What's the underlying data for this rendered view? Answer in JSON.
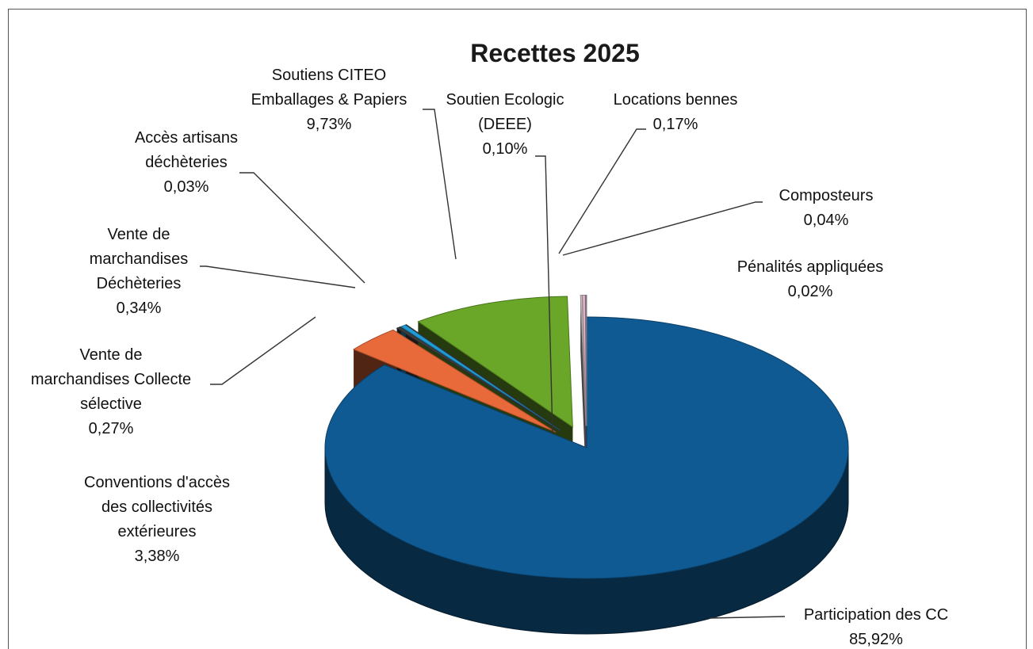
{
  "chart_data": {
    "type": "pie",
    "title": "Recettes 2025",
    "slices": [
      {
        "label_lines": [
          "Participation des CC",
          "85,92%"
        ],
        "value": 85.92,
        "color": "#0f5a92"
      },
      {
        "label_lines": [
          "Conventions d'accès",
          "des collectivités",
          "extérieures",
          "3,38%"
        ],
        "value": 3.38,
        "color": "#e8693a"
      },
      {
        "label_lines": [
          "Vente de",
          "marchandises Collecte",
          "sélective",
          "0,27%"
        ],
        "value": 0.27,
        "color": "#3d3d3d"
      },
      {
        "label_lines": [
          "Vente de",
          "marchandises",
          "Déchèteries",
          "0,34%"
        ],
        "value": 0.34,
        "color": "#1f9cd6"
      },
      {
        "label_lines": [
          "Accès artisans",
          "déchèteries",
          "0,03%"
        ],
        "value": 0.03,
        "color": "#444444"
      },
      {
        "label_lines": [
          "Soutiens CITEO",
          "Emballages & Papiers",
          "9,73%"
        ],
        "value": 9.73,
        "color": "#6aa628"
      },
      {
        "label_lines": [
          "Soutien Ecologic",
          "(DEEE)",
          "0,10%"
        ],
        "value": 0.1,
        "color": "#c9c9c9"
      },
      {
        "label_lines": [
          "Locations bennes",
          "0,17%"
        ],
        "value": 0.17,
        "color": "#e8b4c8"
      },
      {
        "label_lines": [
          "Composteurs",
          "0,04%"
        ],
        "value": 0.04,
        "color": "#9a8fc2"
      },
      {
        "label_lines": [
          "Pénalités appliquées",
          "0,02%"
        ],
        "value": 0.02,
        "color": "#b0b0b0"
      }
    ]
  }
}
